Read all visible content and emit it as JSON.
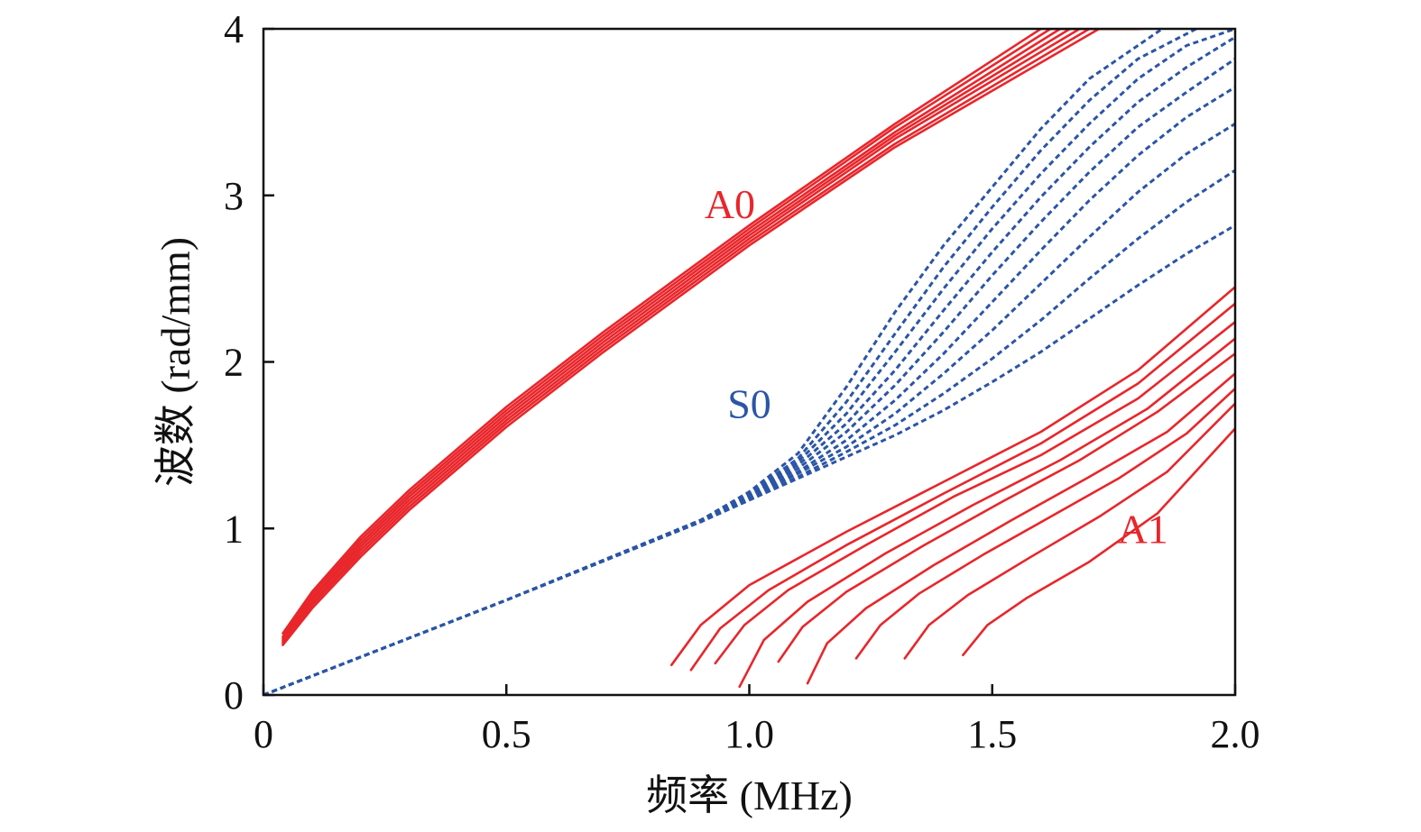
{
  "chart_data": {
    "type": "line",
    "xlabel": "频率 (MHz)",
    "ylabel": "波数 (rad/mm)",
    "xlim": [
      0,
      2.0
    ],
    "ylim": [
      0,
      4
    ],
    "xticks": [
      "0",
      "0.5",
      "1.0",
      "1.5",
      "2.0"
    ],
    "yticks": [
      "0",
      "1",
      "2",
      "3",
      "4"
    ],
    "grid": false,
    "annotations": [
      {
        "text": "A0",
        "x": 0.96,
        "y": 2.95,
        "color": "#e8262b"
      },
      {
        "text": "S0",
        "x": 1.0,
        "y": 1.75,
        "color": "#2b55a6"
      },
      {
        "text": "A1",
        "x": 1.81,
        "y": 1.0,
        "color": "#e8262b"
      }
    ],
    "series": [
      {
        "group": "A0",
        "color": "#e8262b",
        "style": "solid",
        "x": [
          0.04,
          0.1,
          0.2,
          0.3,
          0.5,
          0.7,
          1.0,
          1.3,
          1.6,
          1.81
        ],
        "y": [
          0.37,
          0.62,
          0.95,
          1.23,
          1.73,
          2.18,
          2.82,
          3.43,
          4.0,
          4.0
        ]
      },
      {
        "group": "A0",
        "color": "#e8262b",
        "style": "solid",
        "x": [
          0.04,
          0.1,
          0.2,
          0.3,
          0.5,
          0.7,
          1.0,
          1.3,
          1.62,
          1.8
        ],
        "y": [
          0.35,
          0.6,
          0.93,
          1.21,
          1.71,
          2.16,
          2.8,
          3.41,
          4.0,
          4.0
        ]
      },
      {
        "group": "A0",
        "color": "#e8262b",
        "style": "solid",
        "x": [
          0.04,
          0.1,
          0.2,
          0.3,
          0.5,
          0.7,
          1.0,
          1.3,
          1.64,
          1.8
        ],
        "y": [
          0.34,
          0.58,
          0.91,
          1.19,
          1.69,
          2.14,
          2.78,
          3.38,
          4.0,
          4.0
        ]
      },
      {
        "group": "A0",
        "color": "#e8262b",
        "style": "solid",
        "x": [
          0.04,
          0.1,
          0.2,
          0.3,
          0.5,
          0.7,
          1.0,
          1.3,
          1.66,
          1.8
        ],
        "y": [
          0.33,
          0.57,
          0.89,
          1.17,
          1.67,
          2.12,
          2.76,
          3.36,
          4.0,
          4.0
        ]
      },
      {
        "group": "A0",
        "color": "#e8262b",
        "style": "solid",
        "x": [
          0.04,
          0.1,
          0.2,
          0.3,
          0.5,
          0.7,
          1.0,
          1.3,
          1.68,
          1.8
        ],
        "y": [
          0.32,
          0.55,
          0.87,
          1.15,
          1.65,
          2.1,
          2.74,
          3.34,
          4.0,
          4.0
        ]
      },
      {
        "group": "A0",
        "color": "#e8262b",
        "style": "solid",
        "x": [
          0.04,
          0.1,
          0.2,
          0.3,
          0.5,
          0.7,
          1.0,
          1.3,
          1.7,
          1.8
        ],
        "y": [
          0.31,
          0.54,
          0.85,
          1.13,
          1.63,
          2.08,
          2.72,
          3.31,
          4.0,
          4.0
        ]
      },
      {
        "group": "A0",
        "color": "#e8262b",
        "style": "solid",
        "x": [
          0.04,
          0.1,
          0.2,
          0.3,
          0.5,
          0.7,
          1.0,
          1.3,
          1.72,
          1.8
        ],
        "y": [
          0.3,
          0.52,
          0.83,
          1.11,
          1.61,
          2.06,
          2.7,
          3.29,
          4.0,
          4.0
        ]
      },
      {
        "group": "S0",
        "color": "#2b55a6",
        "style": "dashed",
        "x": [
          0.0,
          0.5,
          0.9,
          1.0,
          1.1,
          1.2,
          1.3,
          1.4,
          1.5,
          1.6,
          1.7,
          1.85
        ],
        "y": [
          0.0,
          0.57,
          1.05,
          1.22,
          1.45,
          1.85,
          2.3,
          2.7,
          3.05,
          3.4,
          3.7,
          4.0
        ]
      },
      {
        "group": "S0",
        "color": "#2b55a6",
        "style": "dashed",
        "x": [
          0.0,
          0.5,
          0.9,
          1.0,
          1.1,
          1.2,
          1.3,
          1.4,
          1.5,
          1.6,
          1.7,
          1.8,
          1.92
        ],
        "y": [
          0.0,
          0.57,
          1.05,
          1.21,
          1.42,
          1.76,
          2.17,
          2.57,
          2.93,
          3.27,
          3.57,
          3.82,
          4.0
        ]
      },
      {
        "group": "S0",
        "color": "#2b55a6",
        "style": "dashed",
        "x": [
          0.0,
          0.5,
          0.9,
          1.0,
          1.1,
          1.2,
          1.3,
          1.4,
          1.5,
          1.6,
          1.7,
          1.8,
          1.9,
          2.0
        ],
        "y": [
          0.0,
          0.57,
          1.05,
          1.2,
          1.4,
          1.69,
          2.06,
          2.44,
          2.8,
          3.13,
          3.43,
          3.7,
          3.9,
          4.0
        ]
      },
      {
        "group": "S0",
        "color": "#2b55a6",
        "style": "dashed",
        "x": [
          0.0,
          0.5,
          0.9,
          1.0,
          1.1,
          1.2,
          1.3,
          1.4,
          1.5,
          1.6,
          1.7,
          1.8,
          1.9,
          2.0
        ],
        "y": [
          0.0,
          0.57,
          1.04,
          1.19,
          1.38,
          1.63,
          1.95,
          2.31,
          2.66,
          2.99,
          3.29,
          3.56,
          3.77,
          3.95
        ]
      },
      {
        "group": "S0",
        "color": "#2b55a6",
        "style": "dashed",
        "x": [
          0.0,
          0.5,
          0.9,
          1.0,
          1.1,
          1.2,
          1.3,
          1.4,
          1.5,
          1.6,
          1.7,
          1.8,
          1.9,
          2.0
        ],
        "y": [
          0.0,
          0.57,
          1.04,
          1.19,
          1.36,
          1.58,
          1.86,
          2.18,
          2.52,
          2.84,
          3.14,
          3.41,
          3.62,
          3.82
        ]
      },
      {
        "group": "S0",
        "color": "#2b55a6",
        "style": "dashed",
        "x": [
          0.0,
          0.5,
          0.9,
          1.0,
          1.1,
          1.2,
          1.3,
          1.4,
          1.5,
          1.6,
          1.7,
          1.8,
          1.9,
          2.0
        ],
        "y": [
          0.0,
          0.57,
          1.04,
          1.18,
          1.34,
          1.53,
          1.77,
          2.05,
          2.36,
          2.67,
          2.97,
          3.24,
          3.47,
          3.65
        ]
      },
      {
        "group": "S0",
        "color": "#2b55a6",
        "style": "dashed",
        "x": [
          0.0,
          0.5,
          0.9,
          1.0,
          1.1,
          1.2,
          1.3,
          1.4,
          1.5,
          1.6,
          1.7,
          1.8,
          1.9,
          2.0
        ],
        "y": [
          0.0,
          0.57,
          1.04,
          1.18,
          1.33,
          1.49,
          1.69,
          1.93,
          2.19,
          2.47,
          2.75,
          3.02,
          3.25,
          3.43
        ]
      },
      {
        "group": "S0",
        "color": "#2b55a6",
        "style": "dashed",
        "x": [
          0.0,
          0.5,
          0.9,
          1.0,
          1.1,
          1.2,
          1.3,
          1.4,
          1.5,
          1.6,
          1.7,
          1.8,
          1.9,
          2.0
        ],
        "y": [
          0.0,
          0.57,
          1.04,
          1.17,
          1.31,
          1.46,
          1.62,
          1.81,
          2.02,
          2.25,
          2.5,
          2.74,
          2.96,
          3.15
        ]
      },
      {
        "group": "S0",
        "color": "#2b55a6",
        "style": "dashed",
        "x": [
          0.0,
          0.5,
          0.9,
          1.0,
          1.1,
          1.2,
          1.3,
          1.4,
          1.5,
          1.6,
          1.7,
          1.8,
          1.9,
          2.0
        ],
        "y": [
          0.0,
          0.57,
          1.04,
          1.17,
          1.3,
          1.43,
          1.56,
          1.71,
          1.88,
          2.06,
          2.26,
          2.46,
          2.65,
          2.82
        ]
      },
      {
        "group": "A1",
        "color": "#e8262b",
        "style": "solid",
        "x": [
          0.84,
          0.9,
          1.0,
          1.2,
          1.4,
          1.6,
          1.8,
          2.0
        ],
        "y": [
          0.18,
          0.42,
          0.66,
          0.98,
          1.28,
          1.58,
          1.95,
          2.45
        ]
      },
      {
        "group": "A1",
        "color": "#e8262b",
        "style": "solid",
        "x": [
          0.88,
          0.94,
          1.04,
          1.2,
          1.4,
          1.6,
          1.8,
          2.0
        ],
        "y": [
          0.15,
          0.4,
          0.63,
          0.9,
          1.21,
          1.51,
          1.87,
          2.35
        ]
      },
      {
        "group": "A1",
        "color": "#e8262b",
        "style": "solid",
        "x": [
          0.93,
          0.99,
          1.08,
          1.24,
          1.42,
          1.6,
          1.8,
          2.0
        ],
        "y": [
          0.19,
          0.42,
          0.63,
          0.9,
          1.19,
          1.44,
          1.78,
          2.24
        ]
      },
      {
        "group": "A1",
        "color": "#e8262b",
        "style": "solid",
        "x": [
          0.98,
          1.03,
          1.12,
          1.28,
          1.46,
          1.64,
          1.82,
          2.0
        ],
        "y": [
          0.05,
          0.33,
          0.56,
          0.85,
          1.14,
          1.41,
          1.72,
          2.14
        ]
      },
      {
        "group": "A1",
        "color": "#e8262b",
        "style": "solid",
        "x": [
          1.06,
          1.11,
          1.2,
          1.36,
          1.52,
          1.68,
          1.84,
          2.0
        ],
        "y": [
          0.2,
          0.41,
          0.62,
          0.9,
          1.16,
          1.41,
          1.7,
          2.05
        ]
      },
      {
        "group": "A1",
        "color": "#e8262b",
        "style": "solid",
        "x": [
          1.12,
          1.16,
          1.24,
          1.38,
          1.54,
          1.7,
          1.86,
          2.0
        ],
        "y": [
          0.07,
          0.31,
          0.52,
          0.78,
          1.05,
          1.31,
          1.58,
          1.93
        ]
      },
      {
        "group": "A1",
        "color": "#e8262b",
        "style": "solid",
        "x": [
          1.22,
          1.27,
          1.35,
          1.48,
          1.62,
          1.76,
          1.9,
          2.0
        ],
        "y": [
          0.22,
          0.42,
          0.61,
          0.84,
          1.07,
          1.3,
          1.57,
          1.84
        ]
      },
      {
        "group": "A1",
        "color": "#e8262b",
        "style": "solid",
        "x": [
          1.32,
          1.37,
          1.45,
          1.58,
          1.72,
          1.86,
          2.0
        ],
        "y": [
          0.22,
          0.42,
          0.6,
          0.83,
          1.07,
          1.34,
          1.75
        ]
      },
      {
        "group": "A1",
        "color": "#e8262b",
        "style": "solid",
        "x": [
          1.44,
          1.49,
          1.57,
          1.7,
          1.84,
          2.0
        ],
        "y": [
          0.24,
          0.42,
          0.58,
          0.8,
          1.09,
          1.6
        ]
      }
    ]
  }
}
